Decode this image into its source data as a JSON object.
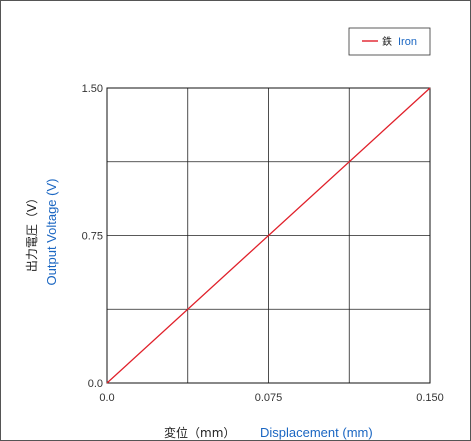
{
  "chart_data": {
    "type": "line",
    "x_label_ja": "変位（mm）",
    "x_label_en": "Displacement (mm)",
    "y_label_ja": "出力電圧（V）",
    "y_label_en": "Output Voltage (V)",
    "xlim": [
      0.0,
      0.15
    ],
    "ylim": [
      0.0,
      1.5
    ],
    "x_ticks": [
      "0.0",
      "0.075",
      "0.150"
    ],
    "y_ticks": [
      "0.0",
      "0.75",
      "1.50"
    ],
    "x_tick_values": [
      0.0,
      0.075,
      0.15
    ],
    "y_tick_values": [
      0.0,
      0.75,
      1.5
    ],
    "grid": true,
    "grid_x_divisions": 4,
    "grid_y_divisions": 4,
    "legend_position": "top-right",
    "series": [
      {
        "name_ja": "鉄",
        "name_en": "Iron",
        "color": "#e0202a",
        "x": [
          0.0,
          0.15
        ],
        "y": [
          0.0,
          1.5
        ]
      }
    ]
  }
}
